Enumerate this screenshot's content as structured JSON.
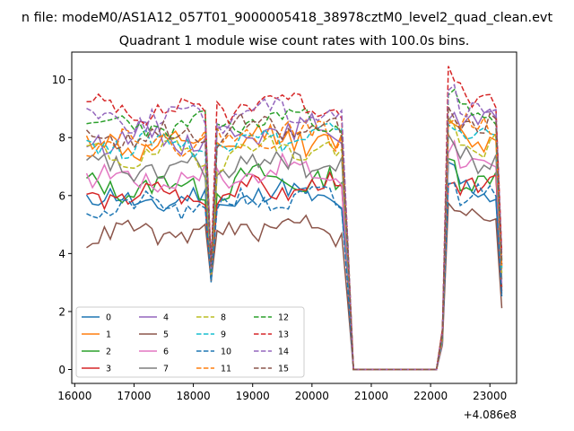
{
  "chart_data": {
    "type": "line",
    "suptitle": "n file: modeM0/AS1A12_057T01_9000005418_38978cztM0_level2_quad_clean.evt",
    "title": "Quadrant 1 module wise count rates with 100.0s bins.",
    "xlabel": "",
    "ylabel": "",
    "x_offset_label": "+4.086e8",
    "xlim": [
      15950,
      23450
    ],
    "ylim": [
      -0.48,
      10.95
    ],
    "xticks": [
      16000,
      17000,
      18000,
      19000,
      20000,
      21000,
      22000,
      23000
    ],
    "xtick_labels": [
      "16000",
      "17000",
      "18000",
      "19000",
      "20000",
      "21000",
      "22000",
      "23000"
    ],
    "yticks": [
      0,
      2,
      4,
      6,
      8,
      10
    ],
    "ytick_labels": [
      "0",
      "2",
      "4",
      "6",
      "8",
      "10"
    ],
    "colors": [
      "#1f77b4",
      "#ff7f0e",
      "#2ca02c",
      "#d62728",
      "#9467bd",
      "#8c564b",
      "#e377c2",
      "#7f7f7f",
      "#bcbd22",
      "#17becf"
    ],
    "series": [
      {
        "name": "0",
        "style": "solid",
        "base": 5.8,
        "jitter": 0.35,
        "seed": 11
      },
      {
        "name": "1",
        "style": "solid",
        "base": 7.7,
        "jitter": 0.4,
        "seed": 12
      },
      {
        "name": "2",
        "style": "solid",
        "base": 6.3,
        "jitter": 0.35,
        "seed": 13
      },
      {
        "name": "3",
        "style": "solid",
        "base": 6.0,
        "jitter": 0.3,
        "seed": 14
      },
      {
        "name": "4",
        "style": "solid",
        "base": 8.0,
        "jitter": 0.35,
        "seed": 15
      },
      {
        "name": "5",
        "style": "solid",
        "base": 4.7,
        "jitter": 0.3,
        "seed": 16
      },
      {
        "name": "6",
        "style": "solid",
        "base": 6.6,
        "jitter": 0.35,
        "seed": 17
      },
      {
        "name": "7",
        "style": "solid",
        "base": 6.9,
        "jitter": 0.4,
        "seed": 18
      },
      {
        "name": "8",
        "style": "dashed",
        "base": 7.4,
        "jitter": 0.35,
        "seed": 19
      },
      {
        "name": "9",
        "style": "dashed",
        "base": 7.8,
        "jitter": 0.35,
        "seed": 20
      },
      {
        "name": "10",
        "style": "dashed",
        "base": 5.6,
        "jitter": 0.3,
        "seed": 21
      },
      {
        "name": "11",
        "style": "dashed",
        "base": 7.9,
        "jitter": 0.35,
        "seed": 22
      },
      {
        "name": "12",
        "style": "dashed",
        "base": 8.4,
        "jitter": 0.3,
        "seed": 23
      },
      {
        "name": "13",
        "style": "dashed",
        "base": 9.0,
        "jitter": 0.35,
        "seed": 24
      },
      {
        "name": "14",
        "style": "dashed",
        "base": 8.7,
        "jitter": 0.35,
        "seed": 25
      },
      {
        "name": "15",
        "style": "dashed",
        "base": 8.1,
        "jitter": 0.35,
        "seed": 26
      }
    ],
    "time_segments": {
      "seg1": [
        16200,
        18200
      ],
      "dip": [
        18300,
        18300
      ],
      "seg2": [
        18400,
        20500
      ],
      "drop": [
        20700,
        22100
      ],
      "seg3": [
        22300,
        23100
      ],
      "end": [
        23200,
        23200
      ],
      "step": 100
    },
    "legend": {
      "position": "lower-left",
      "columns": 4,
      "entries": [
        "0",
        "1",
        "2",
        "3",
        "4",
        "5",
        "6",
        "7",
        "8",
        "9",
        "10",
        "11",
        "12",
        "13",
        "14",
        "15"
      ]
    }
  }
}
